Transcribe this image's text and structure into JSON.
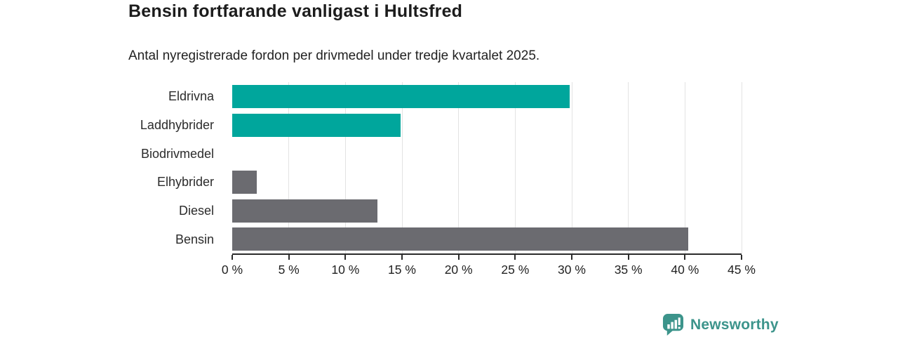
{
  "header": {
    "title": "Bensin fortfarande vanligast i Hultsfred",
    "subtitle": "Antal nyregistrerade fordon per drivmedel under tredje kvartalet 2025."
  },
  "chart_data": {
    "type": "bar",
    "orientation": "horizontal",
    "title": "Bensin fortfarande vanligast i Hultsfred",
    "subtitle": "Antal nyregistrerade fordon per drivmedel under tredje kvartalet 2025.",
    "categories": [
      "Eldrivna",
      "Laddhybrider",
      "Biodrivmedel",
      "Elhybrider",
      "Diesel",
      "Bensin"
    ],
    "values": [
      29.8,
      14.9,
      0,
      2.2,
      12.8,
      40.3
    ],
    "bar_colors": [
      "#00a69c",
      "#00a69c",
      "#00a69c",
      "#6b6b70",
      "#6b6b70",
      "#6b6b70"
    ],
    "unit": "%",
    "xlim": [
      0,
      45
    ],
    "xticks": [
      0,
      5,
      10,
      15,
      20,
      25,
      30,
      35,
      40,
      45
    ],
    "xtick_labels": [
      "0 %",
      "5 %",
      "10 %",
      "15 %",
      "20 %",
      "25 %",
      "30 %",
      "35 %",
      "40 %",
      "45 %"
    ],
    "grid": "vertical",
    "legend_position": "none"
  },
  "branding": {
    "logo_text": "Newsworthy",
    "logo_icon": "speech-bubble-bar-chart-icon",
    "logo_color": "#3c948b"
  },
  "colors": {
    "background": "#ffffff",
    "teal_bar": "#00a69c",
    "gray_bar": "#6b6b70",
    "axis": "#2b2b2b",
    "gridline": "#e3e3e3",
    "title_text": "#1c1c1c",
    "label_text": "#2b2b2b"
  }
}
